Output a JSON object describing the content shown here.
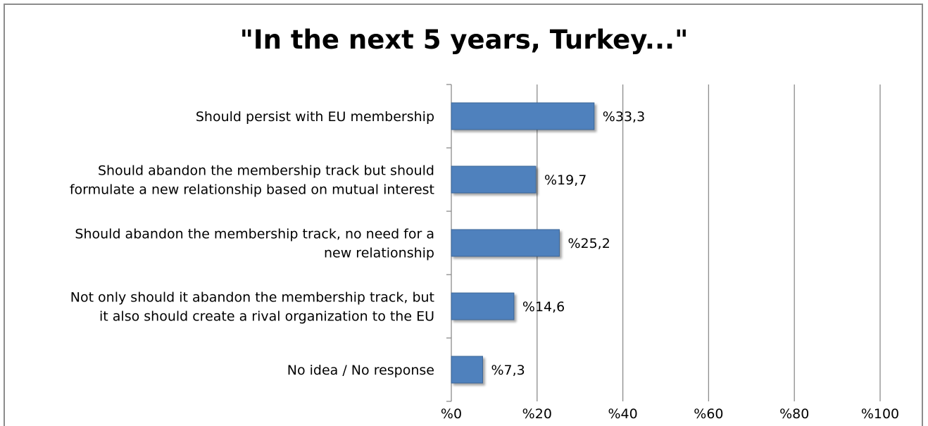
{
  "chart_data": {
    "type": "bar",
    "orientation": "horizontal",
    "title": "\"In the next 5 years, Turkey...\"",
    "categories": [
      [
        "Should persist with EU membership"
      ],
      [
        "Should abandon the membership track but should",
        "formulate a new relationship based on mutual interest"
      ],
      [
        "Should abandon the membership track, no need for a",
        "new relationship"
      ],
      [
        "Not only should it abandon the membership track, but",
        "it also should create a rival organization to the EU"
      ],
      [
        "No idea / No response"
      ]
    ],
    "values": [
      33.3,
      19.7,
      25.2,
      14.6,
      7.3
    ],
    "data_labels": [
      "%33,3",
      "%19,7",
      "%25,2",
      "%14,6",
      "%7,3"
    ],
    "x_ticks": [
      "%0",
      "%20",
      "%40",
      "%60",
      "%80",
      "%100"
    ],
    "xlim": [
      0,
      100
    ],
    "grid": true,
    "legend": "none",
    "colors": {
      "bar": "#4f81bd",
      "bar_border": "#3a6596",
      "grid": "#8c8c8c"
    }
  }
}
